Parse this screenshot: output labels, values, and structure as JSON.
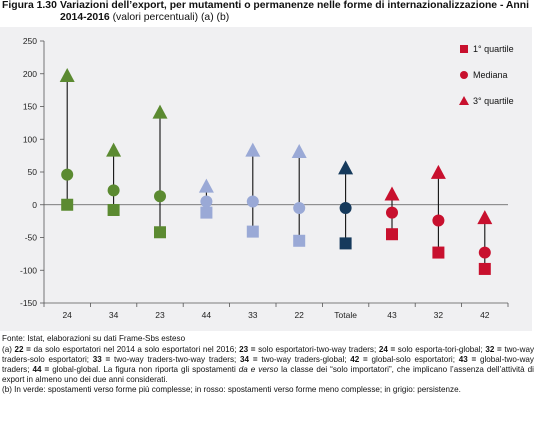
{
  "figure": {
    "label": "Figura 1.30",
    "title": "Variazioni dell’export, per mutamenti o permanenze nelle forme di internazionalizzazione - Anni 2014-2016",
    "subtitle": "(valori percentuali) (a) (b)"
  },
  "chart_data": {
    "type": "scatter",
    "categories": [
      "24",
      "34",
      "23",
      "44",
      "33",
      "22",
      "Totale",
      "43",
      "32",
      "42"
    ],
    "ylim": [
      -150,
      250
    ],
    "yticks": [
      -150,
      -100,
      -50,
      0,
      50,
      100,
      150,
      200,
      250
    ],
    "grid": false,
    "legend_position": "top-right",
    "series": [
      {
        "name": "1° quartile",
        "marker": "square",
        "values": [
          0,
          -8,
          -42,
          -12,
          -41,
          -55,
          -59,
          -45,
          -73,
          -98
        ]
      },
      {
        "name": "Mediana",
        "marker": "circle",
        "values": [
          46,
          22,
          13,
          5,
          5,
          -5,
          -5,
          -12,
          -24,
          -73
        ]
      },
      {
        "name": "3° quartile",
        "marker": "triangle",
        "values": [
          196,
          82,
          140,
          27,
          82,
          80,
          55,
          15,
          48,
          -21
        ]
      }
    ],
    "category_colors": [
      "#5b8a31",
      "#5b8a31",
      "#5b8a31",
      "#9aa9d6",
      "#9aa9d6",
      "#9aa9d6",
      "#163a5c",
      "#c8102e",
      "#c8102e",
      "#c8102e"
    ],
    "legend_color": "#c8102e",
    "whisker_color": "#111111"
  },
  "notes": {
    "source": "Fonte: Istat, elaborazioni su dati Frame-Sbs esteso",
    "a": {
      "prefix": "(a) ",
      "k22": "22 =",
      "t22": " da solo esportatori nel 2014 a solo esportatori nel 2016; ",
      "k23": "23 =",
      "t23": " solo esportatori-two-way traders; ",
      "k24": "24 =",
      "t24": " solo esporta-tori-global; ",
      "k32": "32 =",
      "t32": " two-way traders-solo esportatori; ",
      "k33": "33 =",
      "t33": " two-way traders-two-way traders; ",
      "k34": "34 =",
      "t34": " two-way traders-global; ",
      "k42": "42 =",
      "t42": " global-solo esportatori; ",
      "k43": "43 =",
      "t43": " global-two-way traders; ",
      "k44": "44 =",
      "t44": " global-global. La figura non riporta gli spostamenti ",
      "italic": "da e verso",
      "tail": " la classe dei “solo importatori”, che implicano l’assenza dell’attività di export in almeno uno dei due anni considerati."
    },
    "b": "(b) In verde: spostamenti verso forme più complesse; in rosso: spostamenti verso forme meno complesse; in grigio: persistenze."
  }
}
